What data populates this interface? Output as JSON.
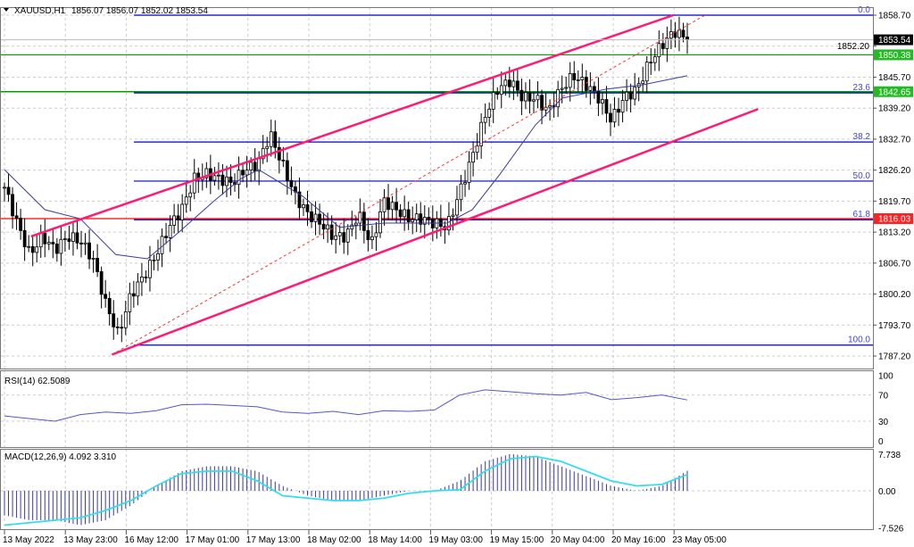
{
  "header": {
    "symbol": "XAUUSD,H1",
    "ohlc": "1856.07 1856.07 1852.02 1853.54"
  },
  "colors": {
    "bull": "#000000",
    "bear": "#000000",
    "channel": "#ff1a75",
    "fib": "#0000cc",
    "support": "#00a000",
    "resistance": "#ff0000",
    "ma": "#3a3aa0",
    "rsi": "#5555cc",
    "macd_hist": "#3a3aa0",
    "macd_signal": "#33ddee"
  },
  "chart_data": {
    "type": "candlestick",
    "price_axis": {
      "min": 1784.0,
      "max": 1861.0,
      "ticks": [
        "1858.70",
        "1852.20",
        "1845.70",
        "1839.20",
        "1832.70",
        "1826.20",
        "1819.70",
        "1813.20",
        "1806.70",
        "1800.20",
        "1793.70",
        "1787.20"
      ]
    },
    "time_axis": {
      "labels": [
        "13 May 2022",
        "13 May 23:00",
        "16 May 12:00",
        "17 May 01:00",
        "17 May 13:00",
        "18 May 02:00",
        "18 May 14:00",
        "19 May 03:00",
        "19 May 15:00",
        "20 May 04:00",
        "20 May 16:00",
        "23 May 05:00"
      ]
    },
    "close": [
      1822.6,
      1815.1,
      1808.5,
      1812.3,
      1809.5,
      1812.3,
      1811.3,
      1807.6,
      1798.2,
      1791.7,
      1800.1,
      1803.9,
      1808.5,
      1814.2,
      1817.9,
      1824.4,
      1825.4,
      1824.4,
      1823.5,
      1826.3,
      1827.3,
      1833.8,
      1827.3,
      1820.7,
      1817.0,
      1815.1,
      1812.3,
      1812.3,
      1817.0,
      1810.4,
      1819.8,
      1817.9,
      1816.0,
      1816.0,
      1815.1,
      1814.2,
      1821.6,
      1829.1,
      1837.6,
      1843.2,
      1845.0,
      1841.3,
      1841.3,
      1838.5,
      1843.2,
      1846.0,
      1844.1,
      1841.3,
      1836.6,
      1841.3,
      1843.2,
      1848.8,
      1852.5,
      1855.3,
      1853.54
    ],
    "moving_average": [
      [
        0,
        1826.3
      ],
      [
        3.2,
        1817.9
      ],
      [
        6,
        1816.0
      ],
      [
        8.8,
        1808.5
      ],
      [
        11.3,
        1807.6
      ],
      [
        13.8,
        1813.2
      ],
      [
        16.6,
        1819.8
      ],
      [
        18.7,
        1824.4
      ],
      [
        20.1,
        1826.3
      ],
      [
        23.6,
        1820.7
      ],
      [
        26.5,
        1814.2
      ],
      [
        30,
        1815.1
      ],
      [
        35,
        1815.1
      ],
      [
        37,
        1817.9
      ],
      [
        39.2,
        1825.4
      ],
      [
        42,
        1835.7
      ],
      [
        44.1,
        1841.3
      ],
      [
        47.6,
        1843.2
      ],
      [
        50.5,
        1844.1
      ],
      [
        54,
        1846.0
      ]
    ],
    "levels": [
      {
        "label": "1850.38",
        "price": 1850.38,
        "kind": "support"
      },
      {
        "label": "1842.65",
        "price": 1842.65,
        "kind": "support"
      },
      {
        "label": "1816.03",
        "price": 1816.03,
        "kind": "resistance"
      }
    ],
    "current_price": "1853.54",
    "fibonacci": [
      {
        "label": "0.0",
        "price": 1858.7
      },
      {
        "label": "23.6",
        "price": 1842.4
      },
      {
        "label": "38.2",
        "price": 1832.1
      },
      {
        "label": "50.0",
        "price": 1823.9
      },
      {
        "label": "61.8",
        "price": 1815.8
      },
      {
        "label": "100.0",
        "price": 1789.5
      }
    ],
    "channel": {
      "upper": [
        [
          2.1,
          1812.3
        ],
        [
          52.9,
          1858.7
        ]
      ],
      "lower": [
        [
          8.5,
          1787.5
        ],
        [
          59.6,
          1839.0
        ]
      ],
      "trend_dashed": [
        [
          8.5,
          1787.5
        ],
        [
          55.4,
          1858.7
        ]
      ]
    },
    "rsi": {
      "label": "RSI(14) 62.5089",
      "ticks": [
        "100",
        "70",
        "30",
        "0"
      ],
      "values": [
        38,
        34,
        30,
        40,
        44,
        42,
        46,
        55,
        56,
        54,
        52,
        44,
        42,
        45,
        40,
        46,
        45,
        47,
        70,
        78,
        75,
        72,
        70,
        74,
        63,
        66,
        70,
        62.5
      ]
    },
    "macd": {
      "label": "MACD(12,26,9) 4.092 3.310",
      "ticks": [
        "7.738",
        "0.00",
        "-7.526"
      ],
      "histogram": [
        -5,
        -6,
        -6,
        -7,
        -6,
        -3,
        1,
        4,
        5,
        5,
        4,
        1,
        -1,
        -2,
        -2,
        -1,
        0,
        0,
        2,
        6,
        7.5,
        7,
        5,
        3,
        1,
        0,
        1,
        4.092
      ],
      "signal": [
        -7,
        -6.5,
        -6,
        -5.5,
        -4,
        -2,
        1,
        3.5,
        4,
        4,
        2,
        -1,
        -1.5,
        -2,
        -2,
        -1.5,
        -0.5,
        0,
        0.2,
        4,
        6.5,
        7,
        6,
        4,
        2,
        1,
        1.3,
        3.31
      ]
    }
  }
}
